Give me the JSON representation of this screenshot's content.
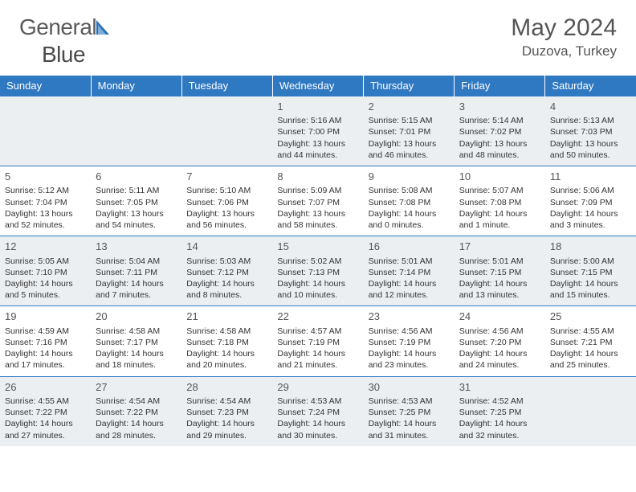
{
  "brand": {
    "name_a": "General",
    "name_b": "Blue"
  },
  "title": "May 2024",
  "location": "Duzova, Turkey",
  "colors": {
    "header_bg": "#2f78c2",
    "header_text": "#ffffff",
    "row_alt_bg": "#eceff2",
    "row_bg": "#ffffff",
    "border": "#2f78c2",
    "text": "#333333",
    "title_text": "#555555",
    "logo_blue": "#2b6fb5"
  },
  "day_headers": [
    "Sunday",
    "Monday",
    "Tuesday",
    "Wednesday",
    "Thursday",
    "Friday",
    "Saturday"
  ],
  "weeks": [
    [
      null,
      null,
      null,
      {
        "n": "1",
        "sr": "5:16 AM",
        "ss": "7:00 PM",
        "dl": "13 hours and 44 minutes."
      },
      {
        "n": "2",
        "sr": "5:15 AM",
        "ss": "7:01 PM",
        "dl": "13 hours and 46 minutes."
      },
      {
        "n": "3",
        "sr": "5:14 AM",
        "ss": "7:02 PM",
        "dl": "13 hours and 48 minutes."
      },
      {
        "n": "4",
        "sr": "5:13 AM",
        "ss": "7:03 PM",
        "dl": "13 hours and 50 minutes."
      }
    ],
    [
      {
        "n": "5",
        "sr": "5:12 AM",
        "ss": "7:04 PM",
        "dl": "13 hours and 52 minutes."
      },
      {
        "n": "6",
        "sr": "5:11 AM",
        "ss": "7:05 PM",
        "dl": "13 hours and 54 minutes."
      },
      {
        "n": "7",
        "sr": "5:10 AM",
        "ss": "7:06 PM",
        "dl": "13 hours and 56 minutes."
      },
      {
        "n": "8",
        "sr": "5:09 AM",
        "ss": "7:07 PM",
        "dl": "13 hours and 58 minutes."
      },
      {
        "n": "9",
        "sr": "5:08 AM",
        "ss": "7:08 PM",
        "dl": "14 hours and 0 minutes."
      },
      {
        "n": "10",
        "sr": "5:07 AM",
        "ss": "7:08 PM",
        "dl": "14 hours and 1 minute."
      },
      {
        "n": "11",
        "sr": "5:06 AM",
        "ss": "7:09 PM",
        "dl": "14 hours and 3 minutes."
      }
    ],
    [
      {
        "n": "12",
        "sr": "5:05 AM",
        "ss": "7:10 PM",
        "dl": "14 hours and 5 minutes."
      },
      {
        "n": "13",
        "sr": "5:04 AM",
        "ss": "7:11 PM",
        "dl": "14 hours and 7 minutes."
      },
      {
        "n": "14",
        "sr": "5:03 AM",
        "ss": "7:12 PM",
        "dl": "14 hours and 8 minutes."
      },
      {
        "n": "15",
        "sr": "5:02 AM",
        "ss": "7:13 PM",
        "dl": "14 hours and 10 minutes."
      },
      {
        "n": "16",
        "sr": "5:01 AM",
        "ss": "7:14 PM",
        "dl": "14 hours and 12 minutes."
      },
      {
        "n": "17",
        "sr": "5:01 AM",
        "ss": "7:15 PM",
        "dl": "14 hours and 13 minutes."
      },
      {
        "n": "18",
        "sr": "5:00 AM",
        "ss": "7:15 PM",
        "dl": "14 hours and 15 minutes."
      }
    ],
    [
      {
        "n": "19",
        "sr": "4:59 AM",
        "ss": "7:16 PM",
        "dl": "14 hours and 17 minutes."
      },
      {
        "n": "20",
        "sr": "4:58 AM",
        "ss": "7:17 PM",
        "dl": "14 hours and 18 minutes."
      },
      {
        "n": "21",
        "sr": "4:58 AM",
        "ss": "7:18 PM",
        "dl": "14 hours and 20 minutes."
      },
      {
        "n": "22",
        "sr": "4:57 AM",
        "ss": "7:19 PM",
        "dl": "14 hours and 21 minutes."
      },
      {
        "n": "23",
        "sr": "4:56 AM",
        "ss": "7:19 PM",
        "dl": "14 hours and 23 minutes."
      },
      {
        "n": "24",
        "sr": "4:56 AM",
        "ss": "7:20 PM",
        "dl": "14 hours and 24 minutes."
      },
      {
        "n": "25",
        "sr": "4:55 AM",
        "ss": "7:21 PM",
        "dl": "14 hours and 25 minutes."
      }
    ],
    [
      {
        "n": "26",
        "sr": "4:55 AM",
        "ss": "7:22 PM",
        "dl": "14 hours and 27 minutes."
      },
      {
        "n": "27",
        "sr": "4:54 AM",
        "ss": "7:22 PM",
        "dl": "14 hours and 28 minutes."
      },
      {
        "n": "28",
        "sr": "4:54 AM",
        "ss": "7:23 PM",
        "dl": "14 hours and 29 minutes."
      },
      {
        "n": "29",
        "sr": "4:53 AM",
        "ss": "7:24 PM",
        "dl": "14 hours and 30 minutes."
      },
      {
        "n": "30",
        "sr": "4:53 AM",
        "ss": "7:25 PM",
        "dl": "14 hours and 31 minutes."
      },
      {
        "n": "31",
        "sr": "4:52 AM",
        "ss": "7:25 PM",
        "dl": "14 hours and 32 minutes."
      },
      null
    ]
  ],
  "labels": {
    "sunrise": "Sunrise:",
    "sunset": "Sunset:",
    "daylight": "Daylight:"
  }
}
